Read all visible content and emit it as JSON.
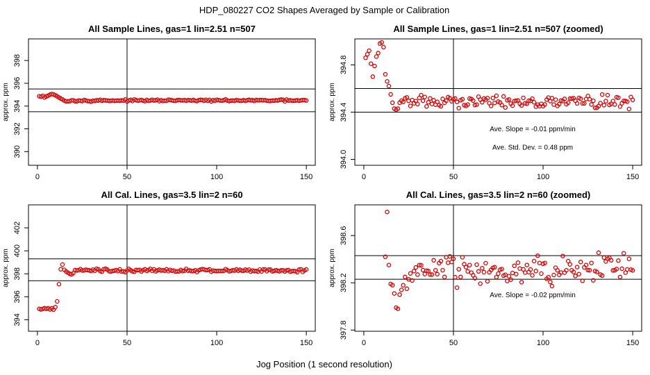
{
  "figure": {
    "title": "HDP_080227  CO2 Shapes Averaged by Sample or Calibration",
    "xlabel": "Jog Position (1 second resolution)"
  },
  "colors": {
    "points": "#dd0000",
    "lines": "#000000",
    "background": "#ffffff"
  },
  "chart_data": [
    {
      "type": "scatter",
      "title": "All Sample Lines, gas=1 lin=2.51 n=507",
      "ylabel": "approx. ppm",
      "xlim": [
        -5,
        155
      ],
      "ylim": [
        388.8,
        399.9
      ],
      "xticks": [
        "0",
        "50",
        "100",
        "150"
      ],
      "xtick_values": [
        0,
        50,
        100,
        150
      ],
      "yticks": [
        "390",
        "392",
        "394",
        "396",
        "398"
      ],
      "ytick_values": [
        390,
        392,
        394,
        396,
        398
      ],
      "hlines": [
        395.5,
        393.5
      ],
      "vline": 50,
      "annotations": [],
      "profile": [
        [
          1,
          394.86
        ],
        [
          2,
          394.82
        ],
        [
          3,
          394.9
        ],
        [
          4,
          394.76
        ],
        [
          5,
          394.85
        ],
        [
          6,
          394.92
        ],
        [
          7,
          395.0
        ],
        [
          8,
          395.05
        ],
        [
          9,
          395.02
        ],
        [
          10,
          394.95
        ],
        [
          11,
          394.85
        ],
        [
          12,
          394.75
        ],
        [
          13,
          394.66
        ],
        [
          14,
          394.58
        ],
        [
          15,
          394.47
        ],
        [
          16,
          394.42
        ],
        [
          17,
          394.41
        ],
        [
          18,
          394.43
        ],
        [
          19,
          394.5
        ],
        [
          20,
          394.5
        ]
      ],
      "tail": {
        "x_start": 21,
        "x_end": 150,
        "level": 394.49,
        "noise": 0.035
      }
    },
    {
      "type": "scatter",
      "title": "All Sample Lines, gas=1 lin=2.51 n=507 (zoomed)",
      "ylabel": "approx. ppm",
      "xlim": [
        -5,
        155
      ],
      "ylim": [
        393.95,
        395.02
      ],
      "xticks": [
        "0",
        "50",
        "100",
        "150"
      ],
      "xtick_values": [
        0,
        50,
        100,
        150
      ],
      "yticks": [
        "394.0",
        "394.4",
        "394.8"
      ],
      "ytick_values": [
        394.0,
        394.4,
        394.8
      ],
      "hlines": [
        394.6,
        394.4
      ],
      "vline": 50,
      "annotations": [
        "Ave. Slope =  -0.01  ppm/min",
        "Ave. Std. Dev. =  0.48  ppm"
      ],
      "profile": [
        [
          1,
          394.86
        ],
        [
          2,
          394.89
        ],
        [
          3,
          394.92
        ],
        [
          4,
          394.81
        ],
        [
          5,
          394.7
        ],
        [
          6,
          394.79
        ],
        [
          7,
          394.87
        ],
        [
          8,
          394.9
        ],
        [
          9,
          394.98
        ],
        [
          10,
          394.99
        ],
        [
          11,
          394.95
        ],
        [
          12,
          394.72
        ],
        [
          13,
          394.66
        ],
        [
          14,
          394.62
        ],
        [
          15,
          394.55
        ],
        [
          16,
          394.48
        ],
        [
          17,
          394.43
        ],
        [
          18,
          394.42
        ],
        [
          19,
          394.43
        ],
        [
          20,
          394.48
        ]
      ],
      "tail": {
        "x_start": 21,
        "x_end": 150,
        "level": 394.49,
        "noise": 0.025
      }
    },
    {
      "type": "scatter",
      "title": "All Cal. Lines, gas=3.5 lin=2 n=60",
      "ylabel": "approx. ppm",
      "xlim": [
        -5,
        155
      ],
      "ylim": [
        393.0,
        404.0
      ],
      "xticks": [
        "0",
        "50",
        "100",
        "150"
      ],
      "xtick_values": [
        0,
        50,
        100,
        150
      ],
      "yticks": [
        "394",
        "396",
        "398",
        "400",
        "402"
      ],
      "ytick_values": [
        394,
        396,
        398,
        400,
        402
      ],
      "hlines": [
        399.3,
        397.4
      ],
      "vline": 50,
      "annotations": [],
      "profile": [
        [
          1,
          394.95
        ],
        [
          2,
          394.9
        ],
        [
          3,
          394.95
        ],
        [
          4,
          395.0
        ],
        [
          5,
          394.95
        ],
        [
          6,
          395.0
        ],
        [
          7,
          394.9
        ],
        [
          8,
          395.0
        ],
        [
          9,
          394.88
        ],
        [
          10,
          395.1
        ],
        [
          11,
          395.6
        ],
        [
          12,
          397.1
        ],
        [
          13,
          398.4
        ],
        [
          14,
          398.8
        ],
        [
          15,
          398.35
        ],
        [
          16,
          398.2
        ],
        [
          17,
          398.1
        ],
        [
          18,
          398.0
        ],
        [
          19,
          397.95
        ],
        [
          20,
          398.05
        ]
      ],
      "tail": {
        "x_start": 21,
        "x_end": 150,
        "level": 398.3,
        "noise": 0.07
      }
    },
    {
      "type": "scatter",
      "title": "All Cal. Lines, gas=3.5 lin=2 n=60 (zoomed)",
      "ylabel": "approx. ppm",
      "xlim": [
        -5,
        155
      ],
      "ylim": [
        397.79,
        398.86
      ],
      "xticks": [
        "0",
        "50",
        "100",
        "150"
      ],
      "xtick_values": [
        0,
        50,
        100,
        150
      ],
      "yticks": [
        "397.8",
        "398.2",
        "398.6"
      ],
      "ytick_values": [
        397.8,
        398.2,
        398.6
      ],
      "hlines": [
        398.43,
        398.23
      ],
      "vline": 50,
      "annotations": [
        "Ave. Slope =  -0.02  ppm/min"
      ],
      "profile": [
        [
          12,
          398.42
        ],
        [
          13,
          398.8
        ],
        [
          14,
          398.35
        ],
        [
          15,
          398.19
        ],
        [
          16,
          398.18
        ],
        [
          17,
          398.11
        ],
        [
          18,
          397.99
        ],
        [
          19,
          397.98
        ],
        [
          20,
          398.1
        ],
        [
          21,
          398.14
        ],
        [
          22,
          398.18
        ],
        [
          23,
          398.25
        ],
        [
          24,
          398.15
        ],
        [
          25,
          398.23
        ],
        [
          26,
          398.28
        ],
        [
          27,
          398.22
        ],
        [
          28,
          398.3
        ],
        [
          29,
          398.33
        ],
        [
          30,
          398.27
        ],
        [
          31,
          398.35
        ]
      ],
      "tail": {
        "x_start": 32,
        "x_end": 150,
        "level": 398.32,
        "noise": 0.06
      }
    }
  ]
}
